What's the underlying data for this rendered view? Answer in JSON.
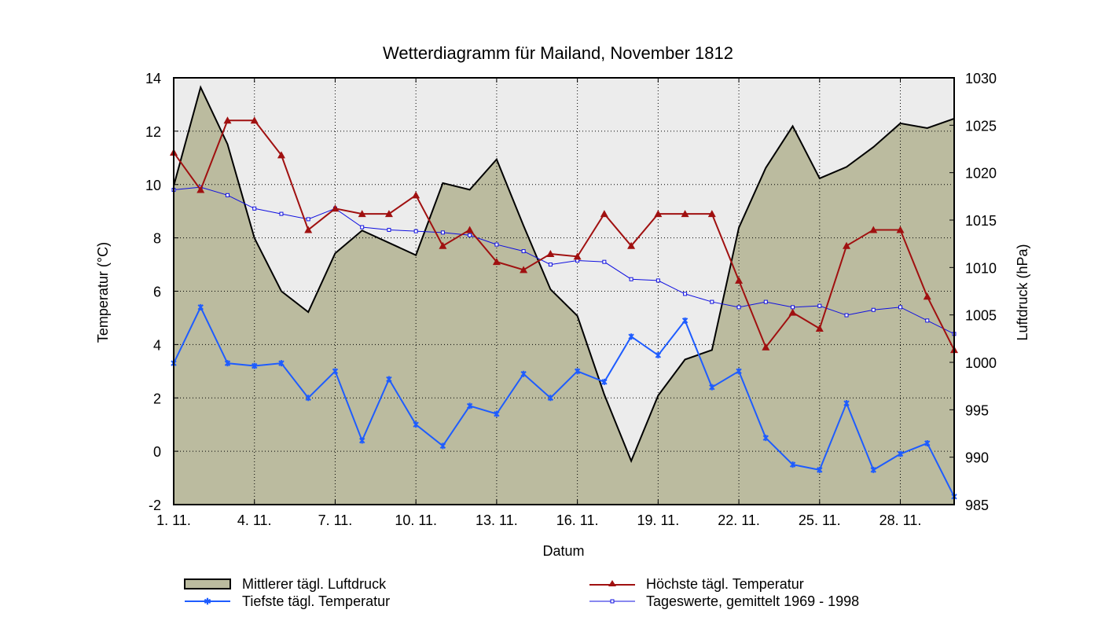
{
  "chart_data": {
    "type": "line",
    "title": "Wetterdiagramm für Mailand, November 1812",
    "xlabel": "Datum",
    "ylabel": "Temperatur (°C)",
    "y2label": "Luftdruck (hPa)",
    "ylim": [
      -2,
      14
    ],
    "y2lim": [
      985,
      1030
    ],
    "yticks": [
      -2,
      0,
      2,
      4,
      6,
      8,
      10,
      12,
      14
    ],
    "y2ticks": [
      985,
      990,
      995,
      1000,
      1005,
      1010,
      1015,
      1020,
      1025,
      1030
    ],
    "xticks": [
      1,
      4,
      7,
      10,
      13,
      16,
      19,
      22,
      25,
      28
    ],
    "xtick_labels": [
      "1. 11.",
      "4. 11.",
      "7. 11.",
      "10. 11.",
      "13. 11.",
      "16. 11.",
      "19. 11.",
      "22. 11.",
      "25. 11.",
      "28. 11."
    ],
    "grid": true,
    "legend_position": "bottom",
    "x": [
      1,
      2,
      3,
      4,
      5,
      6,
      7,
      8,
      9,
      10,
      11,
      12,
      13,
      14,
      15,
      16,
      17,
      18,
      19,
      20,
      21,
      22,
      23,
      24,
      25,
      26,
      27,
      28,
      29,
      30
    ],
    "series": [
      {
        "name": "Mittlerer tägl. Luftdruck",
        "type": "area",
        "axis": "right",
        "color": "#bbbb9f",
        "values": [
          1018.6,
          1029.0,
          1023.0,
          1013.1,
          1007.5,
          1005.3,
          1011.5,
          1013.9,
          1012.6,
          1011.3,
          1018.9,
          1018.2,
          1021.4,
          1014.4,
          1007.7,
          1004.9,
          996.6,
          989.6,
          996.5,
          1000.3,
          1001.3,
          1014.2,
          1020.5,
          1024.9,
          1019.4,
          1020.6,
          1022.7,
          1025.2,
          1024.7,
          1025.7
        ]
      },
      {
        "name": "Höchste tägl. Temperatur",
        "type": "line",
        "axis": "left",
        "color": "#a01010",
        "marker": "triangle",
        "values": [
          11.2,
          9.8,
          12.4,
          12.4,
          11.1,
          8.3,
          9.1,
          8.9,
          8.9,
          9.6,
          7.7,
          8.3,
          7.1,
          6.8,
          7.4,
          7.3,
          8.9,
          7.7,
          8.9,
          8.9,
          8.9,
          6.4,
          3.9,
          5.2,
          4.6,
          7.7,
          8.3,
          8.3,
          5.8,
          3.8
        ]
      },
      {
        "name": "Tiefste tägl. Temperatur",
        "type": "line",
        "axis": "left",
        "color": "#1e5cff",
        "marker": "x",
        "values": [
          3.3,
          5.4,
          3.3,
          3.2,
          3.3,
          2.0,
          3.0,
          0.4,
          2.7,
          1.0,
          0.2,
          1.7,
          1.4,
          2.9,
          2.0,
          3.0,
          2.6,
          4.3,
          3.6,
          4.9,
          2.4,
          3.0,
          0.5,
          -0.5,
          -0.7,
          1.8,
          -0.7,
          -0.1,
          0.3,
          -1.7
        ]
      },
      {
        "name": "Tageswerte, gemittelt 1969 - 1998",
        "type": "line",
        "axis": "left",
        "color": "#1010e0",
        "marker": "square",
        "values": [
          9.8,
          9.9,
          9.6,
          9.1,
          8.9,
          8.7,
          9.1,
          8.4,
          8.3,
          8.25,
          8.2,
          8.1,
          7.75,
          7.5,
          7.0,
          7.15,
          7.1,
          6.45,
          6.4,
          5.9,
          5.6,
          5.4,
          5.6,
          5.4,
          5.45,
          5.1,
          5.3,
          5.4,
          4.9,
          4.4
        ]
      }
    ]
  }
}
